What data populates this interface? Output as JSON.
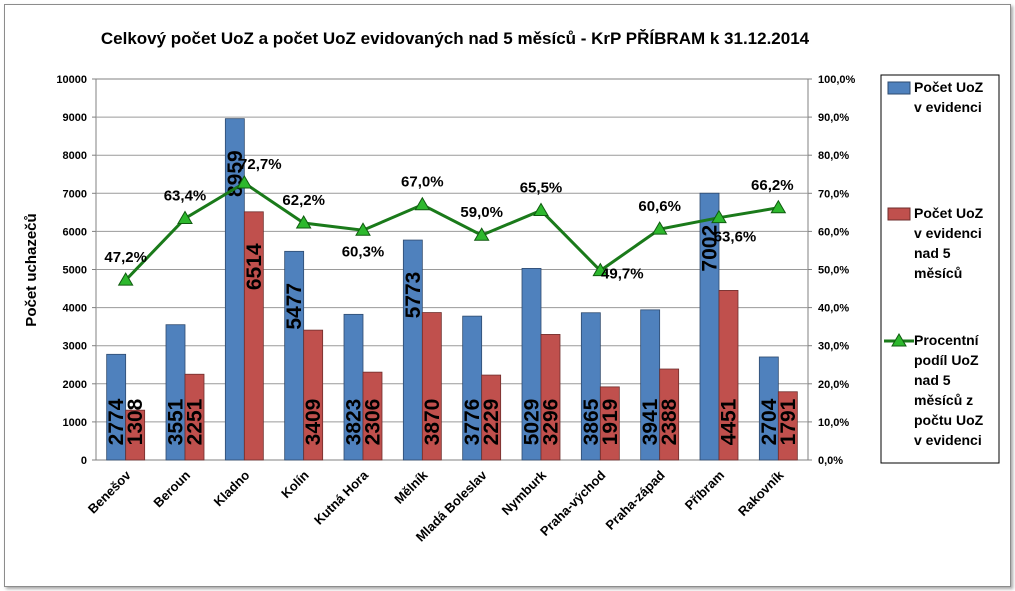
{
  "chart_data": {
    "type": "bar",
    "title": "Celkový počet UoZ a počet UoZ evidovaných nad 5 měsíců - KrP  PŘÍBRAM k 31.12.2014",
    "ylabel": "Počet uchazečů",
    "ylim": [
      0,
      10000
    ],
    "y_ticks": [
      "0",
      "1000",
      "2000",
      "3000",
      "4000",
      "5000",
      "6000",
      "7000",
      "8000",
      "9000",
      "10000"
    ],
    "y2lim": [
      0,
      100
    ],
    "y2_ticks": [
      "0,0%",
      "10,0%",
      "20,0%",
      "30,0%",
      "40,0%",
      "50,0%",
      "60,0%",
      "70,0%",
      "80,0%",
      "90,0%",
      "100,0%"
    ],
    "grid": true,
    "legend_position": "right",
    "categories": [
      "Benešov",
      "Beroun",
      "Kladno",
      "Kolín",
      "Kutná Hora",
      "Mělník",
      "Mladá Boleslav",
      "Nymburk",
      "Praha-východ",
      "Praha-západ",
      "Příbram",
      "Rakovník"
    ],
    "series": [
      {
        "name": "Počet UoZ v evidenci",
        "legend_lines": [
          "Počet UoZ",
          "v evidenci"
        ],
        "type": "bar",
        "axis": "left",
        "color": "#4f81bd",
        "values": [
          2774,
          3551,
          8959,
          5477,
          3823,
          5773,
          3776,
          5029,
          3865,
          3941,
          7002,
          2704
        ],
        "labels": [
          "2774",
          "3551",
          "8959",
          "5477",
          "3823",
          "5773",
          "3776",
          "5029",
          "3865",
          "3941",
          "7002",
          "2704"
        ]
      },
      {
        "name": "Počet UoZ v evidenci nad 5 měsíců",
        "legend_lines": [
          "Počet UoZ",
          "v evidenci",
          "nad 5",
          "měsíců"
        ],
        "type": "bar",
        "axis": "left",
        "color": "#c0504d",
        "values": [
          1308,
          2251,
          6514,
          3409,
          2306,
          3870,
          2229,
          3296,
          1919,
          2388,
          4451,
          1791
        ],
        "labels": [
          "1308",
          "2251",
          "6514",
          "3409",
          "2306",
          "3870",
          "2229",
          "3296",
          "1919",
          "2388",
          "4451",
          "1791"
        ]
      },
      {
        "name": "Procentní podíl UoZ nad 5 měsíců z počtu UoZ v evidenci",
        "legend_lines": [
          "Procentní",
          "podíl UoZ",
          "nad 5",
          "měsíců z",
          "počtu UoZ",
          "v evidenci"
        ],
        "type": "line",
        "axis": "right",
        "color": "#1a7a1a",
        "marker_color": "#2db82d",
        "values": [
          47.2,
          63.4,
          72.7,
          62.2,
          60.3,
          67.0,
          59.0,
          65.5,
          49.7,
          60.6,
          63.6,
          66.2
        ],
        "labels": [
          "47,2%",
          "63,4%",
          "72,7%",
          "62,2%",
          "60,3%",
          "67,0%",
          "59,0%",
          "65,5%",
          "49,7%",
          "60,6%",
          "63,6%",
          "66,2%"
        ]
      }
    ]
  }
}
